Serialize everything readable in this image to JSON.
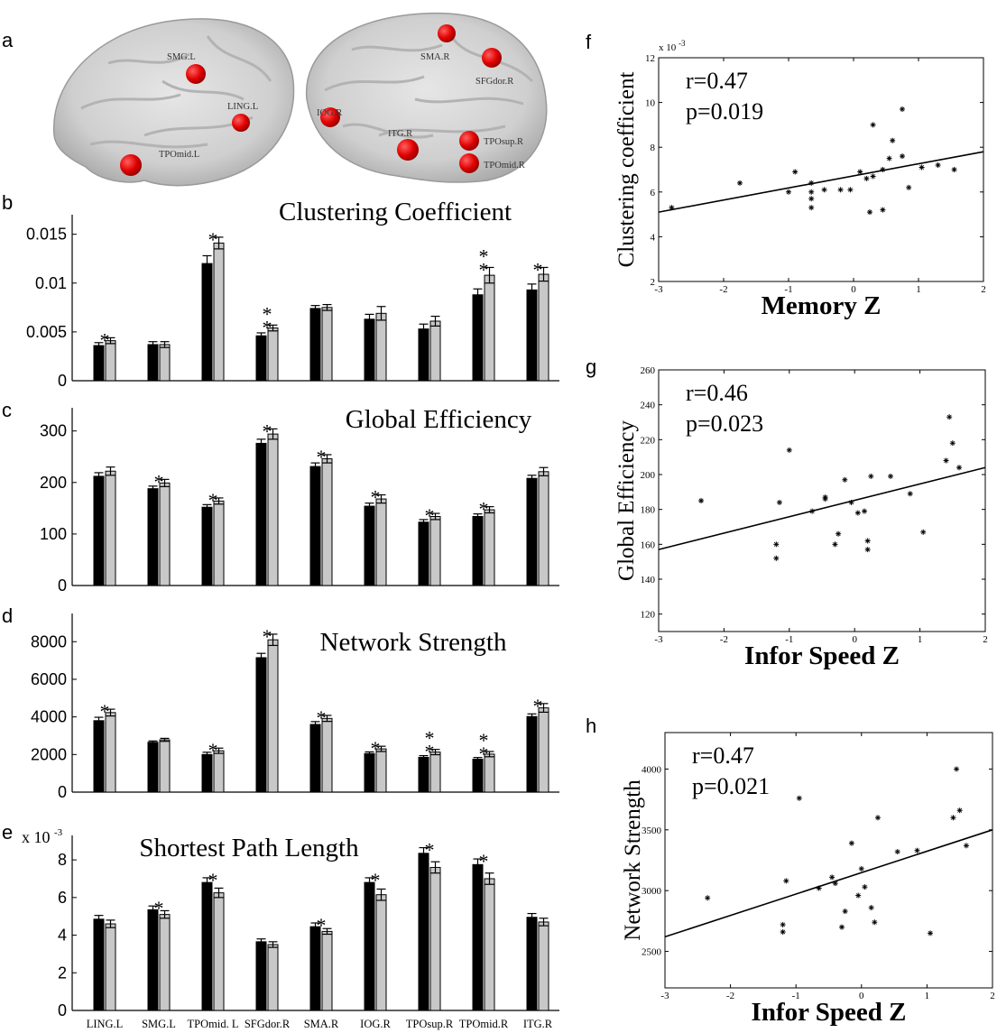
{
  "panel_labels": {
    "a": "a",
    "b": "b",
    "c": "c",
    "d": "d",
    "e": "e",
    "f": "f",
    "g": "g",
    "h": "h"
  },
  "brain": {
    "left_regions": [
      "SMG.L",
      "LING.L",
      "TPOmid.L"
    ],
    "right_regions": [
      "SMA.R",
      "SFGdor.R",
      "IOG.R",
      "ITG.R",
      "TPOsup.R",
      "TPOmid.R"
    ],
    "node_color": "#e00000"
  },
  "bar_colors": {
    "group1": "#000000",
    "group2": "#c8c8c8"
  },
  "chart_data": [
    {
      "type": "bar",
      "panel": "b",
      "title": "Clustering Coefficient",
      "categories": [
        "LING.L",
        "SMG.L",
        "TPOmid. L",
        "SFGdor.R",
        "SMA.R",
        "IOG.R",
        "TPOsup.R",
        "TPOmid.R",
        "ITG.R"
      ],
      "series": [
        {
          "values": [
            0.0036,
            0.0037,
            0.012,
            0.0046,
            0.0074,
            0.0063,
            0.0053,
            0.0088,
            0.0093
          ],
          "errors": [
            0.0003,
            0.0003,
            0.0008,
            0.0003,
            0.0003,
            0.0005,
            0.0005,
            0.0006,
            0.0006
          ]
        },
        {
          "values": [
            0.0041,
            0.0037,
            0.0141,
            0.0054,
            0.0075,
            0.0069,
            0.0061,
            0.0108,
            0.0109
          ],
          "errors": [
            0.0003,
            0.0003,
            0.0006,
            0.0003,
            0.0003,
            0.0007,
            0.0005,
            0.0008,
            0.0007
          ]
        }
      ],
      "ylim": [
        0,
        0.017
      ],
      "yticks": [
        0,
        0.005,
        0.01,
        0.015
      ],
      "yticklabels": [
        "0",
        "0.005",
        "0.01",
        "0.015"
      ],
      "stars": [
        "*",
        "",
        "*",
        "**",
        "",
        "",
        "",
        "**",
        "*"
      ]
    },
    {
      "type": "bar",
      "panel": "c",
      "title": "Global Efficiency",
      "categories": [
        "LING.L",
        "SMG.L",
        "TPOmid. L",
        "SFGdor.R",
        "SMA.R",
        "IOG.R",
        "TPOsup.R",
        "TPOmid.R",
        "ITG.R"
      ],
      "series": [
        {
          "values": [
            212,
            188,
            152,
            276,
            231,
            154,
            123,
            134,
            208
          ],
          "errors": [
            7,
            5,
            5,
            8,
            7,
            6,
            5,
            5,
            6
          ]
        },
        {
          "values": [
            222,
            199,
            164,
            294,
            246,
            168,
            134,
            147,
            221
          ],
          "errors": [
            8,
            7,
            6,
            10,
            8,
            8,
            6,
            6,
            8
          ]
        }
      ],
      "ylim": [
        0,
        345
      ],
      "yticks": [
        0,
        100,
        200,
        300
      ],
      "yticklabels": [
        "0",
        "100",
        "200",
        "300"
      ],
      "stars": [
        "",
        "*",
        "*",
        "*",
        "*",
        "*",
        "*",
        "*",
        ""
      ]
    },
    {
      "type": "bar",
      "panel": "d",
      "title": "Network Strength",
      "categories": [
        "LING.L",
        "SMG.L",
        "TPOmid. L",
        "SFGdor.R",
        "SMA.R",
        "IOG.R",
        "TPOsup.R",
        "TPOmid.R",
        "ITG.R"
      ],
      "series": [
        {
          "values": [
            3800,
            2650,
            2000,
            7150,
            3600,
            2050,
            1850,
            1750,
            4020
          ],
          "errors": [
            180,
            70,
            120,
            230,
            150,
            90,
            90,
            90,
            140
          ]
        },
        {
          "values": [
            4230,
            2780,
            2200,
            8100,
            3920,
            2300,
            2130,
            2020,
            4480
          ],
          "errors": [
            180,
            80,
            140,
            300,
            160,
            140,
            140,
            140,
            230
          ]
        }
      ],
      "ylim": [
        0,
        9500
      ],
      "yticks": [
        0,
        2000,
        4000,
        6000,
        8000
      ],
      "yticklabels": [
        "0",
        "2000",
        "4000",
        "6000",
        "8000"
      ],
      "stars": [
        "*",
        "",
        "*",
        "*",
        "*",
        "*",
        "**",
        "**",
        "*"
      ]
    },
    {
      "type": "bar",
      "panel": "e",
      "title": "Shortest Path Length",
      "multiplier": "x 10",
      "exponent": "-3",
      "categories": [
        "LING.L",
        "SMG.L",
        "TPOmid. L",
        "SFGdor.R",
        "SMA.R",
        "IOG.R",
        "TPOsup.R",
        "TPOmid.R",
        "ITG.R"
      ],
      "series": [
        {
          "values": [
            4.85,
            5.35,
            6.8,
            3.65,
            4.45,
            6.8,
            8.35,
            7.75,
            4.95
          ],
          "errors": [
            0.2,
            0.2,
            0.25,
            0.15,
            0.2,
            0.25,
            0.3,
            0.3,
            0.2
          ]
        },
        {
          "values": [
            4.6,
            5.1,
            6.25,
            3.5,
            4.2,
            6.15,
            7.6,
            7.0,
            4.7
          ],
          "errors": [
            0.2,
            0.2,
            0.25,
            0.15,
            0.15,
            0.3,
            0.3,
            0.3,
            0.2
          ]
        }
      ],
      "ylim": [
        0,
        9.3
      ],
      "yticks": [
        0,
        2,
        4,
        6,
        8
      ],
      "yticklabels": [
        "0",
        "2",
        "4",
        "6",
        "8"
      ],
      "stars": [
        "",
        "*",
        "*",
        "",
        "*",
        "*",
        "*",
        "*",
        ""
      ]
    },
    {
      "type": "scatter",
      "panel": "f",
      "xlabel": "Memory Z",
      "ylabel": "Clustering coefficient",
      "multiplier": "x 10",
      "exponent": "-3",
      "r": "r=0.47",
      "p": "p=0.019",
      "xlim": [
        -3,
        2
      ],
      "ylim": [
        2,
        12
      ],
      "xticks": [
        -3,
        -2,
        -1,
        0,
        1,
        2
      ],
      "yticks": [
        2,
        4,
        6,
        8,
        10,
        12
      ],
      "x": [
        -2.8,
        -1.75,
        -1.0,
        -0.9,
        -0.65,
        -0.65,
        -0.65,
        -0.65,
        -0.45,
        -0.2,
        -0.05,
        0.1,
        0.2,
        0.25,
        0.3,
        0.3,
        0.45,
        0.45,
        0.55,
        0.6,
        0.75,
        0.75,
        0.85,
        1.05,
        1.3,
        1.55
      ],
      "y": [
        5.3,
        6.4,
        6.0,
        6.9,
        6.4,
        6.0,
        5.7,
        5.3,
        6.1,
        6.1,
        6.1,
        6.9,
        6.6,
        5.1,
        6.7,
        9.0,
        7.0,
        5.2,
        7.5,
        8.3,
        9.7,
        7.6,
        6.2,
        7.1,
        7.2,
        7.0
      ],
      "fit": {
        "x": [
          -3,
          2
        ],
        "y": [
          5.1,
          7.8
        ]
      }
    },
    {
      "type": "scatter",
      "panel": "g",
      "xlabel": "Infor Speed Z",
      "ylabel": "Global Efficiency",
      "r": "r=0.46",
      "p": "p=0.023",
      "xlim": [
        -3,
        2
      ],
      "ylim": [
        110,
        260
      ],
      "xticks": [
        -3,
        -2,
        -1,
        0,
        1,
        2
      ],
      "yticks": [
        120,
        140,
        160,
        180,
        200,
        220,
        240,
        260
      ],
      "x": [
        -2.35,
        -1.2,
        -1.2,
        -1.15,
        -1.0,
        -0.65,
        -0.45,
        -0.45,
        -0.3,
        -0.25,
        -0.15,
        -0.05,
        0.05,
        0.15,
        0.2,
        0.2,
        0.25,
        0.55,
        0.85,
        1.05,
        1.4,
        1.45,
        1.5,
        1.6
      ],
      "y": [
        185,
        160,
        152,
        184,
        214,
        179,
        187,
        186,
        160,
        166,
        197,
        184,
        178,
        179,
        162,
        157,
        199,
        199,
        189,
        167,
        208,
        233,
        218,
        204
      ],
      "fit": {
        "x": [
          -3,
          2
        ],
        "y": [
          157,
          204
        ]
      }
    },
    {
      "type": "scatter",
      "panel": "h",
      "xlabel": "Infor Speed Z",
      "ylabel": "Network Strength",
      "r": "r=0.47",
      "p": "p=0.021",
      "xlim": [
        -3,
        2
      ],
      "ylim": [
        2200,
        4300
      ],
      "xticks": [
        -3,
        -2,
        -1,
        0,
        1,
        2
      ],
      "yticks": [
        2500,
        3000,
        3500,
        4000
      ],
      "x": [
        -2.35,
        -1.2,
        -1.2,
        -1.15,
        -0.95,
        -0.65,
        -0.45,
        -0.4,
        -0.3,
        -0.25,
        -0.15,
        -0.05,
        0.0,
        0.05,
        0.15,
        0.2,
        0.25,
        0.55,
        0.85,
        1.05,
        1.4,
        1.45,
        1.5,
        1.6
      ],
      "y": [
        2940,
        2660,
        2720,
        3080,
        3760,
        3020,
        3110,
        3060,
        2700,
        2830,
        3390,
        2960,
        3180,
        3030,
        2860,
        2740,
        3600,
        3320,
        3330,
        2650,
        3600,
        4000,
        3660,
        3370
      ],
      "fit": {
        "x": [
          -3,
          2
        ],
        "y": [
          2620,
          3500
        ]
      }
    }
  ]
}
